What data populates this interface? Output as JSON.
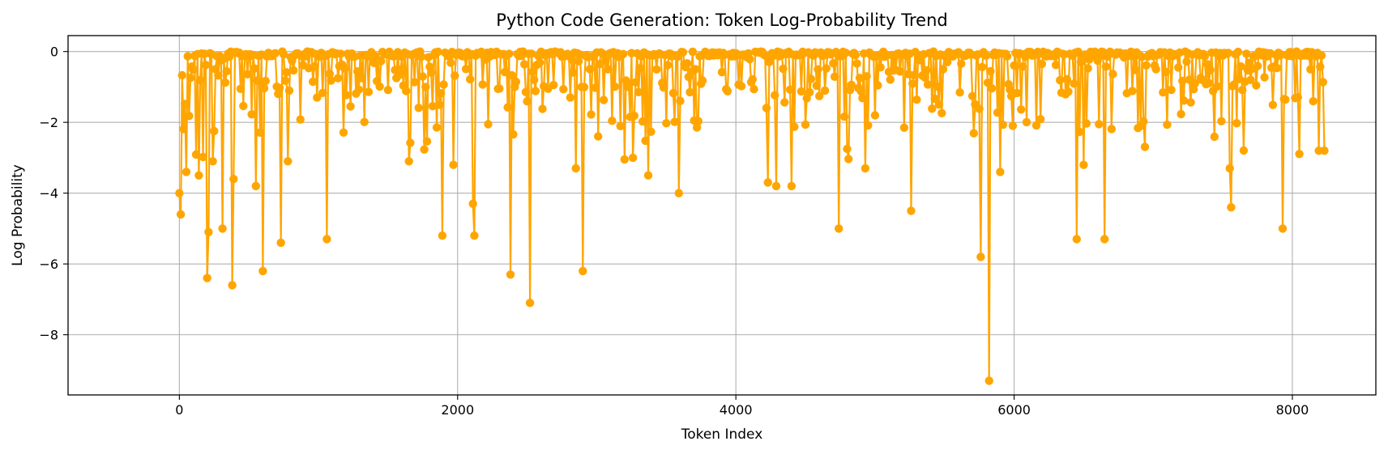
{
  "chart_data": {
    "type": "line",
    "title": "Python Code Generation: Token Log-Probability Trend",
    "xlabel": "Token Index",
    "ylabel": "Log Probability",
    "xlim": [
      -800,
      8600
    ],
    "ylim": [
      -9.7,
      0.45
    ],
    "xticks": [
      0,
      2000,
      4000,
      6000,
      8000
    ],
    "xtick_labels": [
      "0",
      "2000",
      "4000",
      "6000",
      "8000"
    ],
    "yticks": [
      0,
      -2,
      -4,
      -6,
      -8
    ],
    "ytick_labels": [
      "0",
      "−2",
      "−4",
      "−6",
      "−8"
    ],
    "grid": true,
    "series_color": "#FFA500",
    "series": [
      {
        "x": [
          0,
          8235
        ],
        "y": [
          0,
          0
        ],
        "note_values": "baseline"
      }
    ],
    "notable_points": [
      {
        "x": 0,
        "y": -4.0
      },
      {
        "x": 10,
        "y": -4.6
      },
      {
        "x": 50,
        "y": -3.4
      },
      {
        "x": 140,
        "y": -3.5
      },
      {
        "x": 200,
        "y": -6.4
      },
      {
        "x": 210,
        "y": -5.1
      },
      {
        "x": 240,
        "y": -3.1
      },
      {
        "x": 310,
        "y": -5.0
      },
      {
        "x": 380,
        "y": -6.6
      },
      {
        "x": 390,
        "y": -3.6
      },
      {
        "x": 550,
        "y": -3.8
      },
      {
        "x": 600,
        "y": -6.2
      },
      {
        "x": 730,
        "y": -5.4
      },
      {
        "x": 780,
        "y": -3.1
      },
      {
        "x": 1060,
        "y": -5.3
      },
      {
        "x": 1650,
        "y": -3.1
      },
      {
        "x": 1890,
        "y": -5.2
      },
      {
        "x": 1970,
        "y": -3.2
      },
      {
        "x": 2110,
        "y": -4.3
      },
      {
        "x": 2120,
        "y": -5.2
      },
      {
        "x": 2380,
        "y": -6.3
      },
      {
        "x": 2520,
        "y": -7.1
      },
      {
        "x": 2850,
        "y": -3.3
      },
      {
        "x": 2900,
        "y": -6.2
      },
      {
        "x": 3260,
        "y": -3.0
      },
      {
        "x": 3370,
        "y": -3.5
      },
      {
        "x": 3590,
        "y": -4.0
      },
      {
        "x": 4230,
        "y": -3.7
      },
      {
        "x": 4290,
        "y": -3.8
      },
      {
        "x": 4400,
        "y": -3.8
      },
      {
        "x": 4740,
        "y": -5.0
      },
      {
        "x": 4930,
        "y": -3.3
      },
      {
        "x": 5260,
        "y": -4.5
      },
      {
        "x": 5760,
        "y": -5.8
      },
      {
        "x": 5820,
        "y": -9.3
      },
      {
        "x": 5900,
        "y": -3.4
      },
      {
        "x": 6450,
        "y": -5.3
      },
      {
        "x": 6500,
        "y": -3.2
      },
      {
        "x": 6650,
        "y": -5.3
      },
      {
        "x": 7550,
        "y": -3.3
      },
      {
        "x": 7560,
        "y": -4.4
      },
      {
        "x": 7930,
        "y": -5.0
      },
      {
        "x": 8190,
        "y": -2.8
      },
      {
        "x": 8230,
        "y": -2.8
      }
    ]
  }
}
